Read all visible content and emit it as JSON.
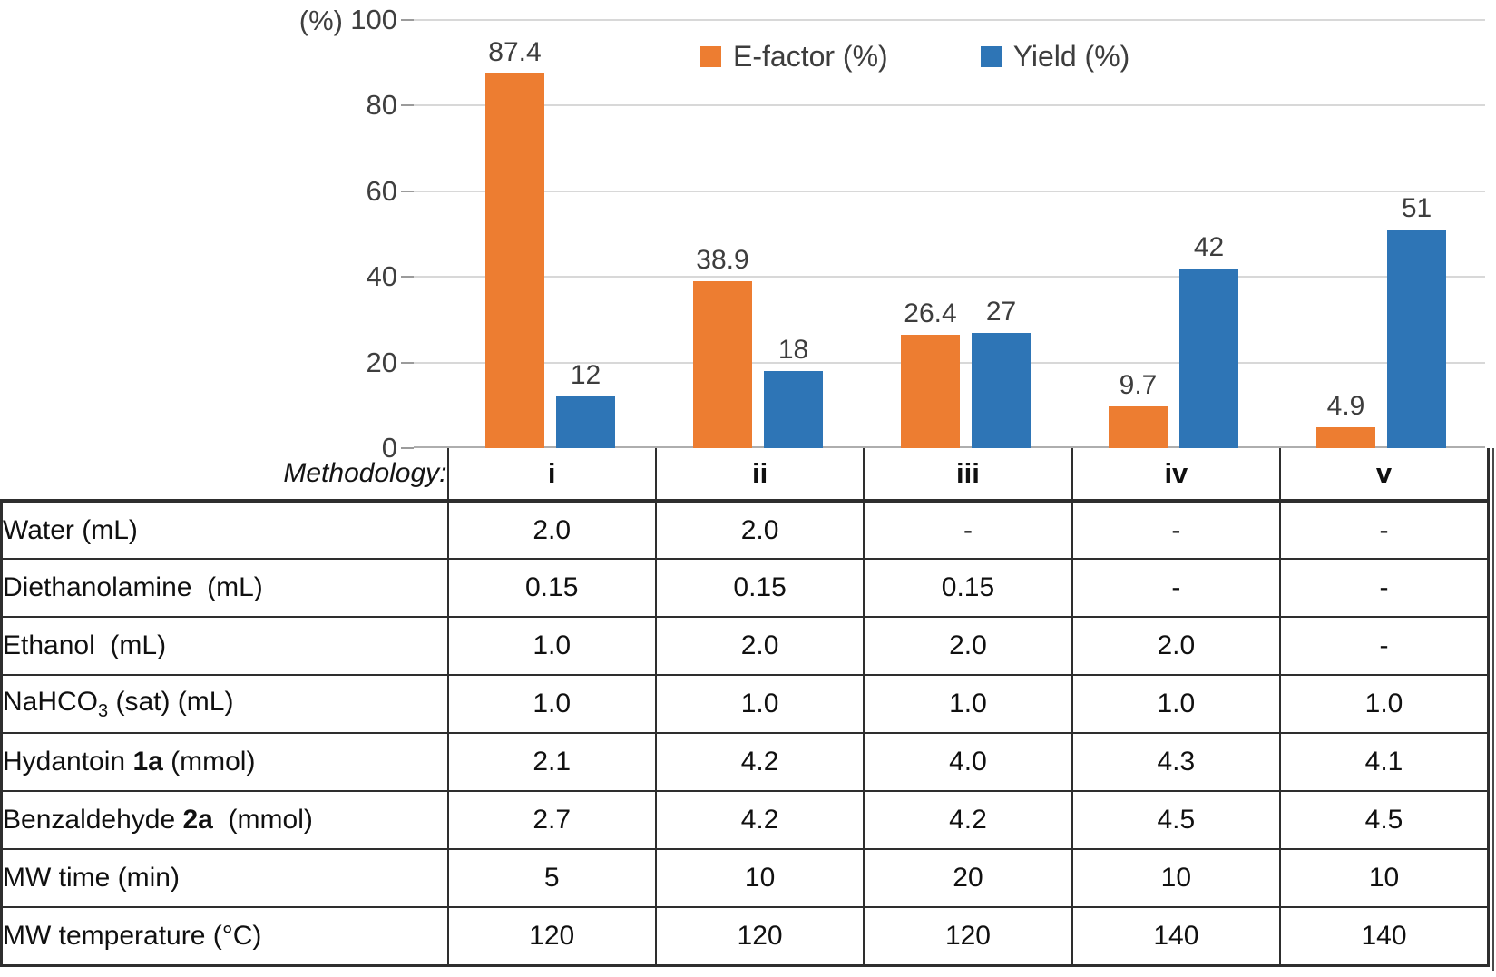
{
  "chart_data": {
    "type": "bar",
    "title": "",
    "axis_unit": "(%)",
    "categories": [
      "i",
      "ii",
      "iii",
      "iv",
      "v"
    ],
    "series": [
      {
        "name": "E-factor (%)",
        "color": "#ED7D31",
        "values": [
          87.4,
          38.9,
          26.4,
          9.7,
          4.9
        ],
        "labels": [
          "87.4",
          "38.9",
          "26.4",
          "9.7",
          "4.9"
        ]
      },
      {
        "name": "Yield (%)",
        "color": "#2E75B6",
        "values": [
          12,
          18,
          27,
          42,
          51
        ],
        "labels": [
          "12",
          "18",
          "27",
          "42",
          "51"
        ]
      }
    ],
    "ylim": [
      0,
      100
    ],
    "yticks": [
      0,
      20,
      40,
      60,
      80,
      100
    ],
    "grid": true,
    "legend_position": "top-center"
  },
  "table": {
    "header_label": "Methodology:",
    "columns": [
      "i",
      "ii",
      "iii",
      "iv",
      "v"
    ],
    "rows": [
      {
        "label": [
          {
            "t": "Water (mL)"
          }
        ],
        "values": [
          "2.0",
          "2.0",
          "-",
          "-",
          "-"
        ]
      },
      {
        "label": [
          {
            "t": "Diethanolamine  (mL)"
          }
        ],
        "values": [
          "0.15",
          "0.15",
          "0.15",
          "-",
          "-"
        ]
      },
      {
        "label": [
          {
            "t": "Ethanol  (mL)"
          }
        ],
        "values": [
          "1.0",
          "2.0",
          "2.0",
          "2.0",
          "-"
        ]
      },
      {
        "label": [
          {
            "t": "NaHCO"
          },
          {
            "t": "3",
            "style": "sub"
          },
          {
            "t": " (sat) (mL)"
          }
        ],
        "values": [
          "1.0",
          "1.0",
          "1.0",
          "1.0",
          "1.0"
        ]
      },
      {
        "label": [
          {
            "t": "Hydantoin "
          },
          {
            "t": "1a",
            "style": "bold"
          },
          {
            "t": " (mmol)"
          }
        ],
        "values": [
          "2.1",
          "4.2",
          "4.0",
          "4.3",
          "4.1"
        ]
      },
      {
        "label": [
          {
            "t": "Benzaldehyde "
          },
          {
            "t": "2a",
            "style": "bold"
          },
          {
            "t": "  (mmol)"
          }
        ],
        "values": [
          "2.7",
          "4.2",
          "4.2",
          "4.5",
          "4.5"
        ]
      },
      {
        "label": [
          {
            "t": "MW time (min)"
          }
        ],
        "values": [
          "5",
          "10",
          "20",
          "10",
          "10"
        ]
      },
      {
        "label": [
          {
            "t": "MW temperature (°C)"
          }
        ],
        "values": [
          "120",
          "120",
          "120",
          "140",
          "140"
        ]
      }
    ]
  },
  "colors": {
    "efactor": "#ED7D31",
    "yield": "#2E75B6",
    "gridline": "#D8D8D8",
    "axis_line": "#AEAEAE",
    "axis_text": "#3F3F3F",
    "table_border": "#2E2E2E"
  }
}
